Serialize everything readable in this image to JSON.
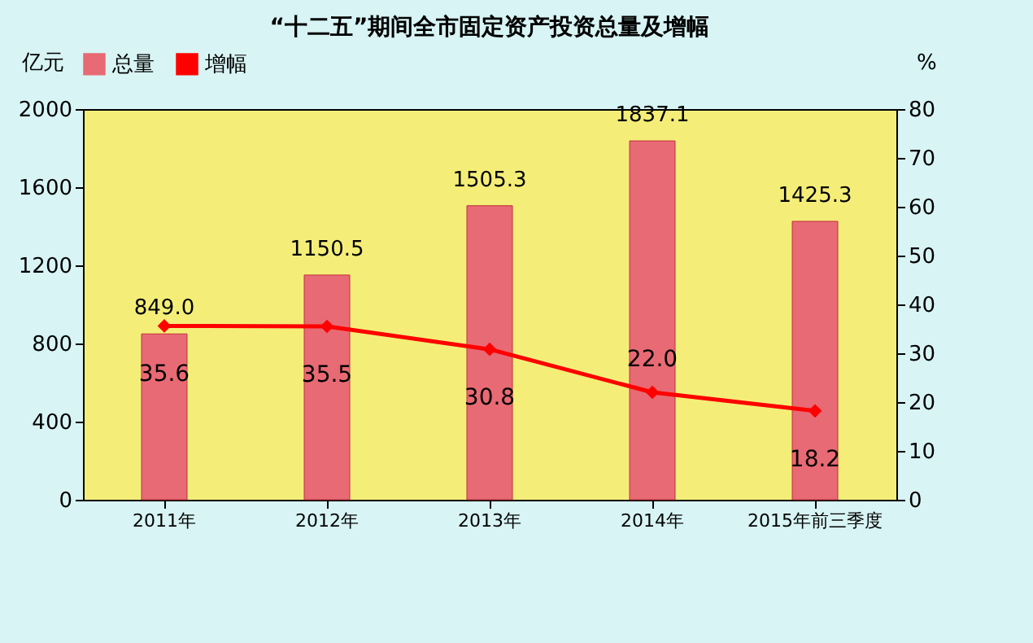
{
  "chart_data": {
    "type": "bar",
    "title": "“十二五”期间全市固定资产投资总量及增幅",
    "ylabel": "亿元",
    "y2label": "%",
    "categories": [
      "2011年",
      "2012年",
      "2013年",
      "2014年",
      "2015年前三季度"
    ],
    "series": [
      {
        "name": "总量",
        "color": "#e86a74",
        "values": [
          849.0,
          1150.5,
          1505.3,
          1837.1,
          1425.3
        ],
        "value_labels": [
          "849.0",
          "1150.5",
          "1505.3",
          "1837.1",
          "1425.3"
        ]
      },
      {
        "name": "增幅",
        "type": "line",
        "axis": "y2",
        "color": "#ff0000",
        "values": [
          35.6,
          35.5,
          30.8,
          22.0,
          18.2
        ],
        "value_labels": [
          "35.6",
          "35.5",
          "30.8",
          "22.0",
          "18.2"
        ]
      }
    ],
    "ylim": [
      0,
      2000
    ],
    "yticks": [
      0,
      400,
      800,
      1200,
      1600,
      2000
    ],
    "y2lim": [
      0,
      80
    ],
    "y2ticks": [
      0,
      10,
      20,
      30,
      40,
      50,
      60,
      70,
      80
    ],
    "legend": "top",
    "grid": false,
    "marker": "diamond",
    "line_style": "solid"
  }
}
